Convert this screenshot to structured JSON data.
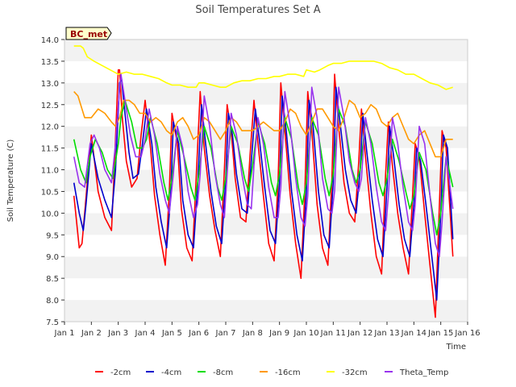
{
  "chart_data": {
    "type": "line",
    "title": "Soil Temperatures Set A",
    "xlabel": "Time",
    "ylabel": "Soil Temperature (C)",
    "xlim": [
      1,
      16
    ],
    "ylim": [
      7.5,
      14.0
    ],
    "x_ticks": [
      {
        "value": 1,
        "label": "Jan 1"
      },
      {
        "value": 2,
        "label": "Jan 2"
      },
      {
        "value": 3,
        "label": "Jan 3"
      },
      {
        "value": 4,
        "label": "Jan 4"
      },
      {
        "value": 5,
        "label": "Jan 5"
      },
      {
        "value": 6,
        "label": "Jan 6"
      },
      {
        "value": 7,
        "label": "Jan 7"
      },
      {
        "value": 8,
        "label": "Jan 8"
      },
      {
        "value": 9,
        "label": "Jan 9"
      },
      {
        "value": 10,
        "label": "Jan 10"
      },
      {
        "value": 11,
        "label": "Jan 11"
      },
      {
        "value": 12,
        "label": "Jan 12"
      },
      {
        "value": 13,
        "label": "Jan 13"
      },
      {
        "value": 14,
        "label": "Jan 14"
      },
      {
        "value": 15,
        "label": "Jan 15"
      },
      {
        "value": 16,
        "label": "Jan 16"
      }
    ],
    "y_ticks": [
      7.5,
      8.0,
      8.5,
      9.0,
      9.5,
      10.0,
      10.5,
      11.0,
      11.5,
      12.0,
      12.5,
      13.0,
      13.5,
      14.0
    ],
    "y_tick_labels": [
      "7.5",
      "8.0",
      "8.5",
      "9.0",
      "9.5",
      "10.0",
      "10.5",
      "11.0",
      "11.5",
      "12.0",
      "12.5",
      "13.0",
      "13.5",
      "14.0"
    ],
    "grid": "horizontal alternating bands",
    "legend_position": "bottom-center",
    "annotation": "BC_met",
    "series": [
      {
        "name": "-2cm",
        "color": "#ff0000",
        "x": [
          1.35,
          1.55,
          1.65,
          1.75,
          2.0,
          2.25,
          2.5,
          2.75,
          2.85,
          3.0,
          3.05,
          3.15,
          3.3,
          3.5,
          3.7,
          3.85,
          4.0,
          4.2,
          4.35,
          4.55,
          4.75,
          4.9,
          5.0,
          5.2,
          5.35,
          5.55,
          5.75,
          5.9,
          6.05,
          6.2,
          6.4,
          6.6,
          6.8,
          6.95,
          7.05,
          7.2,
          7.35,
          7.55,
          7.75,
          7.9,
          8.05,
          8.2,
          8.4,
          8.6,
          8.8,
          8.95,
          9.05,
          9.2,
          9.4,
          9.6,
          9.8,
          9.95,
          10.05,
          10.2,
          10.4,
          10.6,
          10.8,
          10.95,
          11.05,
          11.2,
          11.4,
          11.6,
          11.8,
          11.95,
          12.05,
          12.2,
          12.4,
          12.6,
          12.8,
          12.95,
          13.05,
          13.2,
          13.4,
          13.6,
          13.8,
          13.95,
          14.05,
          14.2,
          14.4,
          14.6,
          14.8,
          14.95,
          15.05,
          15.2,
          15.45
        ],
        "y": [
          10.4,
          9.2,
          9.3,
          10.0,
          11.8,
          10.5,
          9.9,
          9.6,
          11.0,
          13.3,
          13.3,
          12.2,
          11.2,
          10.6,
          10.8,
          11.8,
          12.6,
          11.5,
          10.4,
          9.5,
          8.8,
          10.5,
          12.3,
          11.6,
          10.1,
          9.2,
          8.9,
          10.8,
          12.8,
          11.5,
          10.4,
          9.6,
          9.0,
          11.0,
          12.5,
          11.9,
          10.8,
          9.9,
          9.8,
          11.3,
          12.6,
          11.6,
          10.4,
          9.3,
          8.9,
          10.8,
          13.0,
          11.9,
          10.4,
          9.3,
          8.5,
          10.6,
          12.8,
          11.9,
          10.2,
          9.2,
          8.8,
          10.8,
          13.2,
          12.0,
          10.7,
          10.0,
          9.8,
          11.2,
          12.4,
          11.3,
          10.0,
          9.0,
          8.6,
          10.9,
          12.1,
          11.1,
          10.0,
          9.2,
          8.6,
          10.4,
          11.6,
          11.3,
          10.0,
          8.8,
          7.6,
          10.2,
          11.9,
          11.5,
          9.0
        ]
      },
      {
        "name": "-4cm",
        "color": "#0000cc",
        "x": [
          1.35,
          1.55,
          1.7,
          1.8,
          2.0,
          2.25,
          2.5,
          2.75,
          2.9,
          3.05,
          3.12,
          3.25,
          3.4,
          3.55,
          3.75,
          3.9,
          4.05,
          4.25,
          4.4,
          4.6,
          4.8,
          4.95,
          5.05,
          5.25,
          5.4,
          5.6,
          5.8,
          5.95,
          6.1,
          6.25,
          6.45,
          6.65,
          6.85,
          7.0,
          7.1,
          7.25,
          7.4,
          7.6,
          7.8,
          7.95,
          8.1,
          8.25,
          8.45,
          8.65,
          8.85,
          9.0,
          9.1,
          9.25,
          9.45,
          9.65,
          9.85,
          10.0,
          10.1,
          10.25,
          10.45,
          10.65,
          10.85,
          11.0,
          11.1,
          11.25,
          11.45,
          11.65,
          11.85,
          12.0,
          12.1,
          12.25,
          12.45,
          12.65,
          12.85,
          13.0,
          13.1,
          13.25,
          13.45,
          13.65,
          13.85,
          14.0,
          14.1,
          14.25,
          14.45,
          14.65,
          14.85,
          15.0,
          15.1,
          15.25,
          15.45
        ],
        "y": [
          10.7,
          10.0,
          9.6,
          10.2,
          11.6,
          10.8,
          10.3,
          9.9,
          11.0,
          13.0,
          13.1,
          12.3,
          11.4,
          10.8,
          10.9,
          11.6,
          12.4,
          11.6,
          10.6,
          9.8,
          9.2,
          10.4,
          12.1,
          11.6,
          10.3,
          9.5,
          9.2,
          10.6,
          12.5,
          11.6,
          10.5,
          9.7,
          9.3,
          10.8,
          12.3,
          11.8,
          10.9,
          10.1,
          10.0,
          11.2,
          12.4,
          11.7,
          10.6,
          9.6,
          9.3,
          10.7,
          12.7,
          11.9,
          10.5,
          9.5,
          8.9,
          10.5,
          12.6,
          12.0,
          10.5,
          9.5,
          9.2,
          10.7,
          12.9,
          12.1,
          11.0,
          10.3,
          10.0,
          11.0,
          12.3,
          11.4,
          10.3,
          9.4,
          9.0,
          10.6,
          12.0,
          11.3,
          10.2,
          9.4,
          9.0,
          10.2,
          11.5,
          11.2,
          10.2,
          9.1,
          8.0,
          10.0,
          11.8,
          11.5,
          9.4
        ]
      },
      {
        "name": "-8cm",
        "color": "#00dd00",
        "x": [
          1.35,
          1.6,
          1.8,
          1.95,
          2.15,
          2.4,
          2.6,
          2.8,
          3.0,
          3.1,
          3.25,
          3.5,
          3.7,
          3.9,
          4.05,
          4.2,
          4.45,
          4.7,
          4.85,
          5.0,
          5.2,
          5.45,
          5.7,
          5.85,
          6.0,
          6.2,
          6.45,
          6.7,
          6.85,
          7.0,
          7.2,
          7.45,
          7.7,
          7.85,
          8.0,
          8.2,
          8.45,
          8.7,
          8.85,
          9.0,
          9.2,
          9.45,
          9.7,
          9.85,
          10.0,
          10.2,
          10.45,
          10.7,
          10.85,
          11.0,
          11.2,
          11.45,
          11.7,
          11.85,
          12.0,
          12.2,
          12.45,
          12.7,
          12.85,
          13.0,
          13.2,
          13.45,
          13.7,
          13.85,
          14.0,
          14.2,
          14.45,
          14.7,
          14.85,
          15.0,
          15.2,
          15.45
        ],
        "y": [
          11.7,
          11.0,
          10.7,
          11.3,
          11.7,
          11.4,
          11.0,
          10.8,
          11.6,
          12.2,
          12.6,
          12.1,
          11.5,
          11.5,
          11.7,
          12.2,
          11.6,
          10.7,
          10.3,
          10.8,
          11.9,
          11.3,
          10.6,
          10.3,
          10.9,
          12.0,
          11.5,
          10.6,
          10.3,
          10.8,
          12.0,
          11.6,
          10.8,
          10.5,
          11.1,
          12.1,
          11.6,
          10.7,
          10.4,
          10.9,
          12.2,
          11.7,
          10.6,
          10.2,
          10.7,
          12.2,
          11.8,
          10.8,
          10.4,
          10.9,
          12.4,
          12.0,
          11.0,
          10.7,
          11.0,
          12.1,
          11.6,
          10.7,
          10.4,
          10.8,
          11.7,
          11.2,
          10.5,
          10.1,
          10.4,
          11.4,
          11.0,
          10.0,
          9.5,
          10.0,
          11.3,
          10.6
        ]
      },
      {
        "name": "-16cm",
        "color": "#ff9900",
        "x": [
          1.35,
          1.5,
          1.75,
          2.0,
          2.25,
          2.5,
          2.75,
          2.9,
          3.05,
          3.2,
          3.4,
          3.6,
          3.8,
          4.0,
          4.2,
          4.4,
          4.6,
          4.8,
          5.0,
          5.2,
          5.4,
          5.6,
          5.8,
          6.0,
          6.2,
          6.4,
          6.6,
          6.8,
          7.0,
          7.2,
          7.4,
          7.6,
          7.8,
          8.0,
          8.2,
          8.4,
          8.6,
          8.8,
          9.0,
          9.2,
          9.4,
          9.6,
          9.8,
          10.0,
          10.2,
          10.4,
          10.6,
          10.8,
          11.0,
          11.2,
          11.4,
          11.6,
          11.8,
          12.0,
          12.2,
          12.4,
          12.6,
          12.8,
          13.0,
          13.2,
          13.4,
          13.6,
          13.8,
          14.0,
          14.2,
          14.4,
          14.6,
          14.8,
          15.0,
          15.2,
          15.45
        ],
        "y": [
          12.8,
          12.7,
          12.2,
          12.2,
          12.4,
          12.3,
          12.1,
          12.0,
          12.2,
          12.6,
          12.6,
          12.5,
          12.3,
          12.3,
          12.1,
          12.2,
          12.1,
          11.9,
          11.8,
          12.1,
          12.2,
          12.0,
          11.7,
          11.8,
          12.2,
          12.1,
          11.9,
          11.7,
          11.9,
          12.2,
          12.1,
          11.9,
          11.9,
          11.9,
          12.0,
          12.1,
          12.0,
          11.9,
          11.9,
          12.1,
          12.4,
          12.3,
          12.0,
          11.8,
          12.1,
          12.4,
          12.4,
          12.2,
          12.0,
          11.9,
          12.2,
          12.6,
          12.5,
          12.2,
          12.3,
          12.5,
          12.4,
          12.1,
          12.0,
          12.2,
          12.3,
          12.0,
          11.7,
          11.6,
          11.8,
          11.9,
          11.6,
          11.3,
          11.3,
          11.7,
          11.7
        ]
      },
      {
        "name": "-32cm",
        "color": "#ffff00",
        "x": [
          1.35,
          1.6,
          1.7,
          1.85,
          2.1,
          2.4,
          2.7,
          3.0,
          3.3,
          3.6,
          3.9,
          4.2,
          4.5,
          4.8,
          5.0,
          5.3,
          5.6,
          5.9,
          6.0,
          6.2,
          6.5,
          6.8,
          7.0,
          7.3,
          7.6,
          7.9,
          8.2,
          8.5,
          8.8,
          9.0,
          9.3,
          9.6,
          9.9,
          10.0,
          10.3,
          10.5,
          10.8,
          11.0,
          11.3,
          11.6,
          11.9,
          12.2,
          12.5,
          12.8,
          13.1,
          13.4,
          13.7,
          14.0,
          14.3,
          14.6,
          14.9,
          15.2,
          15.45
        ],
        "y": [
          13.85,
          13.85,
          13.8,
          13.6,
          13.5,
          13.4,
          13.3,
          13.2,
          13.25,
          13.2,
          13.2,
          13.15,
          13.1,
          13.0,
          12.95,
          12.95,
          12.9,
          12.9,
          13.0,
          13.0,
          12.95,
          12.9,
          12.9,
          13.0,
          13.05,
          13.05,
          13.1,
          13.1,
          13.15,
          13.15,
          13.2,
          13.2,
          13.15,
          13.3,
          13.25,
          13.3,
          13.4,
          13.45,
          13.45,
          13.5,
          13.5,
          13.5,
          13.5,
          13.45,
          13.35,
          13.3,
          13.2,
          13.2,
          13.1,
          13.0,
          12.95,
          12.85,
          12.9
        ]
      },
      {
        "name": "Theta_Temp",
        "color": "#9933ee",
        "x": [
          1.35,
          1.55,
          1.75,
          1.95,
          2.1,
          2.3,
          2.5,
          2.75,
          2.9,
          3.0,
          3.1,
          3.25,
          3.45,
          3.65,
          3.85,
          4.0,
          4.15,
          4.35,
          4.55,
          4.75,
          4.9,
          5.05,
          5.2,
          5.4,
          5.6,
          5.8,
          5.95,
          6.05,
          6.2,
          6.4,
          6.6,
          6.8,
          6.95,
          7.05,
          7.2,
          7.4,
          7.6,
          7.8,
          7.95,
          8.05,
          8.2,
          8.4,
          8.6,
          8.8,
          8.95,
          9.05,
          9.2,
          9.4,
          9.6,
          9.8,
          9.95,
          10.05,
          10.2,
          10.4,
          10.6,
          10.8,
          10.95,
          11.05,
          11.2,
          11.4,
          11.6,
          11.8,
          11.95,
          12.05,
          12.2,
          12.4,
          12.6,
          12.8,
          12.95,
          13.05,
          13.2,
          13.4,
          13.6,
          13.8,
          13.95,
          14.05,
          14.2,
          14.4,
          14.6,
          14.8,
          14.95,
          15.05,
          15.2,
          15.45
        ],
        "y": [
          11.3,
          10.7,
          10.6,
          11.6,
          11.8,
          11.5,
          11.0,
          10.7,
          11.6,
          12.5,
          13.2,
          12.6,
          11.8,
          11.3,
          11.3,
          11.7,
          12.4,
          11.8,
          10.9,
          10.3,
          10.0,
          10.9,
          12.0,
          11.5,
          10.5,
          9.9,
          10.2,
          10.9,
          12.7,
          12.0,
          10.9,
          10.2,
          9.9,
          10.9,
          12.3,
          11.8,
          10.9,
          10.2,
          10.1,
          11.1,
          12.2,
          11.6,
          10.6,
          9.9,
          9.9,
          10.6,
          12.8,
          12.0,
          10.8,
          9.9,
          9.7,
          10.4,
          12.9,
          12.2,
          10.8,
          10.1,
          10.0,
          10.5,
          12.9,
          12.2,
          11.2,
          10.7,
          10.5,
          10.8,
          12.2,
          11.6,
          10.6,
          9.8,
          9.6,
          10.4,
          12.2,
          11.6,
          10.6,
          9.8,
          9.6,
          10.2,
          12.0,
          11.6,
          10.4,
          9.3,
          9.0,
          9.8,
          11.3,
          10.1
        ]
      }
    ]
  }
}
